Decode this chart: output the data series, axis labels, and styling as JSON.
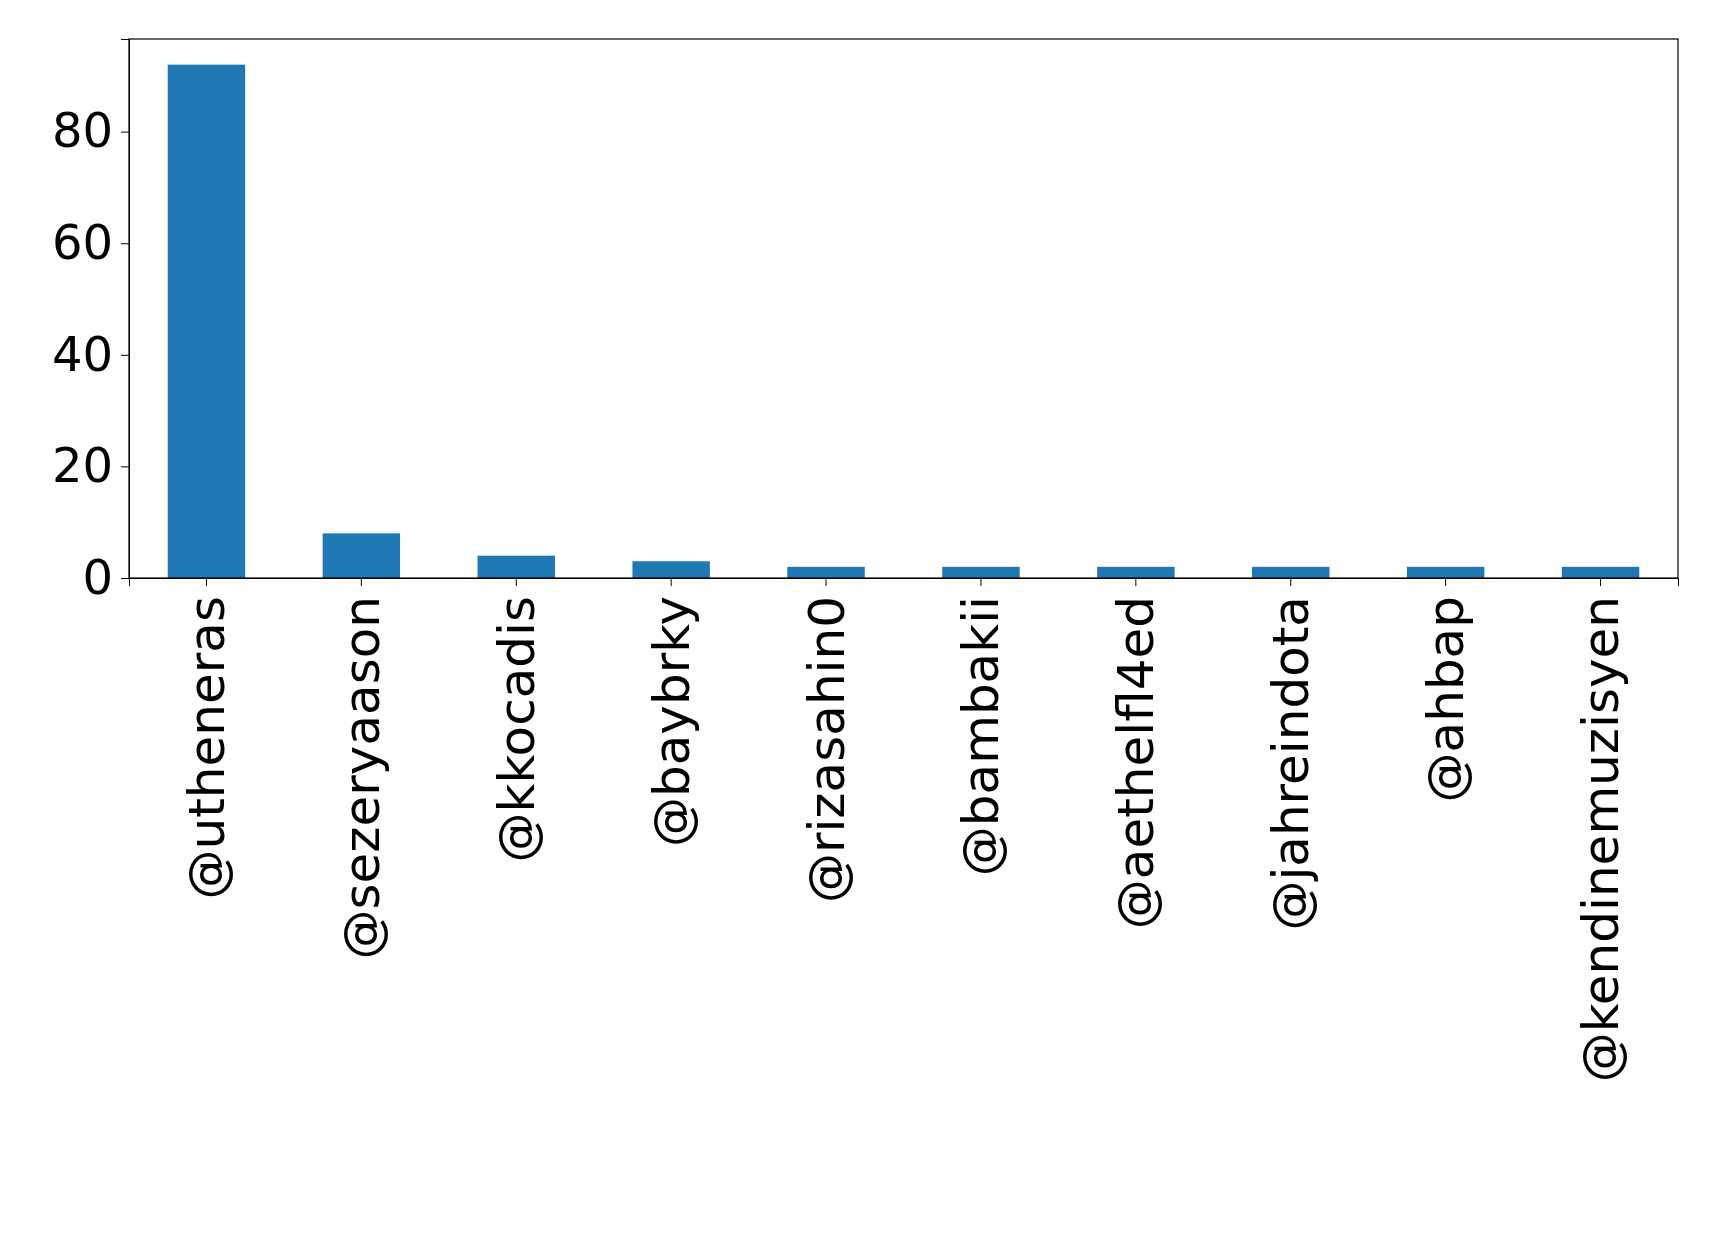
{
  "chart_data": {
    "type": "bar",
    "categories": [
      "@utheneras",
      "@sezeryaason",
      "@kkocadis",
      "@baybrky",
      "@rizasahin0",
      "@bambakii",
      "@aethelfl4ed",
      "@jahreindota",
      "@ahbap",
      "@kendinemuzisyen"
    ],
    "values": [
      92,
      8,
      4,
      3,
      2,
      2,
      2,
      2,
      2,
      2
    ],
    "color": "#1f77b4",
    "ylim": [
      0,
      96.6
    ],
    "yticks": [
      0,
      20,
      40,
      60,
      80
    ],
    "grid": false
  }
}
